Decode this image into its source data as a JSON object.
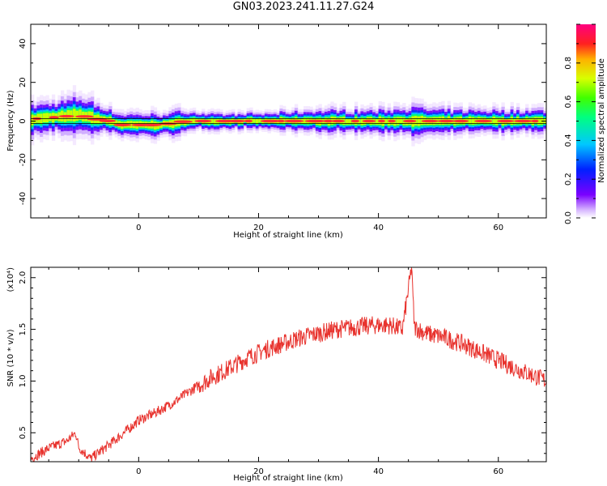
{
  "figure": {
    "title": "GN03.2023.241.11.27.G24"
  },
  "chart_data": [
    {
      "type": "heatmap",
      "xlabel": "Height of straight line (km)",
      "ylabel": "Frequency (Hz)",
      "xlim": [
        -18,
        68
      ],
      "ylim": [
        -50,
        50
      ],
      "xticks": [
        "0",
        "20",
        "40",
        "60"
      ],
      "yticks": [
        "-40",
        "-20",
        "0",
        "20",
        "40"
      ],
      "grid": false,
      "colorbar": {
        "label": "Normalized spectral amplitude",
        "range": [
          0,
          1
        ],
        "ticks": [
          "0.0",
          "0.2",
          "0.4",
          "0.6",
          "0.8"
        ],
        "colormap": "rainbow (white-violet-blue-cyan-green-yellow-red-pink)"
      },
      "ridge": {
        "description": "narrow high-amplitude band centered near 0 Hz",
        "x": [
          -18,
          -14,
          -10,
          -7,
          -5,
          -3,
          0,
          3,
          6,
          8,
          10,
          20,
          30,
          40,
          45,
          50,
          60,
          68
        ],
        "frequency": [
          1,
          2,
          3,
          1,
          0,
          -2,
          -2,
          -2,
          -1,
          0,
          0,
          0,
          0,
          0,
          0,
          0,
          0,
          0
        ],
        "halfwidth": [
          4,
          4,
          5,
          4,
          3,
          3,
          3,
          3,
          3,
          3,
          2,
          2,
          3,
          3,
          4,
          3,
          3,
          3
        ]
      }
    },
    {
      "type": "line",
      "xlabel": "Height of straight line (km)",
      "ylabel": "SNR (10 * v/v)",
      "yunit_label": "(x10⁴)",
      "xlim": [
        -18,
        68
      ],
      "ylim": [
        0.22,
        2.1
      ],
      "xticks": [
        "0",
        "20",
        "40",
        "60"
      ],
      "yticks": [
        "0.5",
        "1.0",
        "1.5",
        "2.0"
      ],
      "grid": false,
      "series": [
        {
          "color": "#e8332e",
          "x": [
            -18,
            -15,
            -12,
            -10.5,
            -10,
            -8,
            -5,
            -2,
            0,
            3,
            6,
            9,
            12,
            15,
            18,
            21,
            24,
            27,
            30,
            33,
            36,
            39,
            42,
            44,
            45.5,
            46,
            48,
            51,
            54,
            57,
            60,
            63,
            66,
            68
          ],
          "values": [
            0.25,
            0.35,
            0.42,
            0.5,
            0.36,
            0.25,
            0.38,
            0.52,
            0.62,
            0.7,
            0.8,
            0.92,
            1.03,
            1.12,
            1.22,
            1.3,
            1.36,
            1.42,
            1.46,
            1.5,
            1.52,
            1.54,
            1.54,
            1.5,
            2.08,
            1.52,
            1.46,
            1.42,
            1.36,
            1.28,
            1.2,
            1.12,
            1.05,
            1.0
          ],
          "note": "noisy line, sharp spike near x=45.5"
        }
      ]
    }
  ]
}
